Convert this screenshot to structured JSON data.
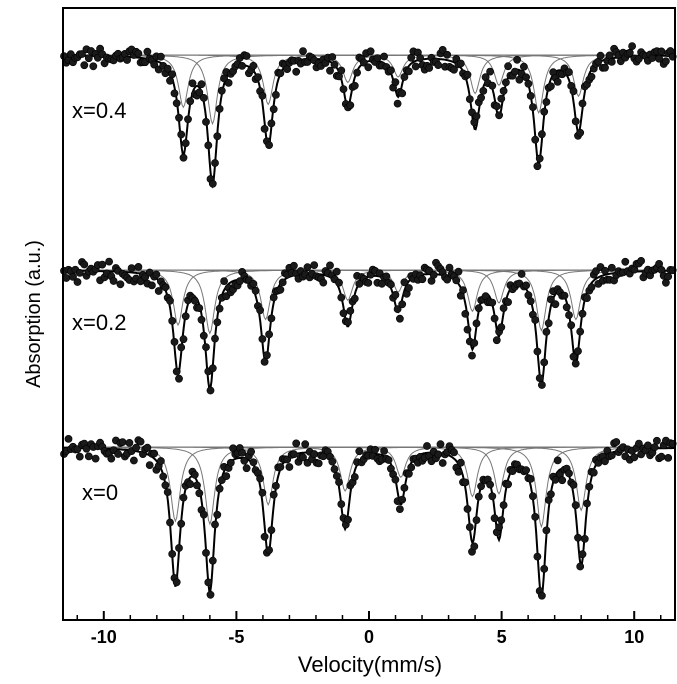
{
  "chart_data": {
    "type": "scatter",
    "xlabel": "Velocity(mm/s)",
    "ylabel": "Absorption (a.u.)",
    "xlim": [
      -11.5,
      11.5
    ],
    "xticks": [
      "-10",
      "-5",
      "0",
      "5",
      "10"
    ],
    "xtick_values": [
      -10,
      -5,
      0,
      5,
      10
    ],
    "grid": false,
    "legend": "none",
    "colors": {
      "points": "#1a1a1a",
      "fit_line": "#000000",
      "sub_line": "#777777",
      "axis": "#000000"
    },
    "series": [
      {
        "name": "x=0.4",
        "baseline": 0,
        "total_fit_peaks": [
          {
            "v": -7.0,
            "depth": 0.95
          },
          {
            "v": -5.9,
            "depth": 1.25
          },
          {
            "v": -3.8,
            "depth": 0.9
          },
          {
            "v": -0.8,
            "depth": 0.5
          },
          {
            "v": 1.1,
            "depth": 0.4
          },
          {
            "v": 4.0,
            "depth": 0.7
          },
          {
            "v": 4.9,
            "depth": 0.55
          },
          {
            "v": 6.4,
            "depth": 1.05
          },
          {
            "v": 7.9,
            "depth": 0.75
          }
        ]
      },
      {
        "name": "x=0.2",
        "baseline": 1,
        "total_fit_peaks": [
          {
            "v": -7.2,
            "depth": 1.0
          },
          {
            "v": -6.0,
            "depth": 1.15
          },
          {
            "v": -3.9,
            "depth": 0.9
          },
          {
            "v": -0.8,
            "depth": 0.55
          },
          {
            "v": 1.1,
            "depth": 0.4
          },
          {
            "v": 3.9,
            "depth": 0.75
          },
          {
            "v": 4.9,
            "depth": 0.6
          },
          {
            "v": 6.5,
            "depth": 1.1
          },
          {
            "v": 7.8,
            "depth": 0.9
          }
        ]
      },
      {
        "name": "x=0",
        "baseline": 2,
        "total_fit_peaks": [
          {
            "v": -7.3,
            "depth": 1.35
          },
          {
            "v": -6.0,
            "depth": 1.4
          },
          {
            "v": -3.8,
            "depth": 1.05
          },
          {
            "v": -0.9,
            "depth": 0.8
          },
          {
            "v": 1.2,
            "depth": 0.55
          },
          {
            "v": 3.9,
            "depth": 0.9
          },
          {
            "v": 4.9,
            "depth": 0.85
          },
          {
            "v": 6.5,
            "depth": 1.45
          },
          {
            "v": 8.0,
            "depth": 1.15
          }
        ]
      }
    ]
  }
}
